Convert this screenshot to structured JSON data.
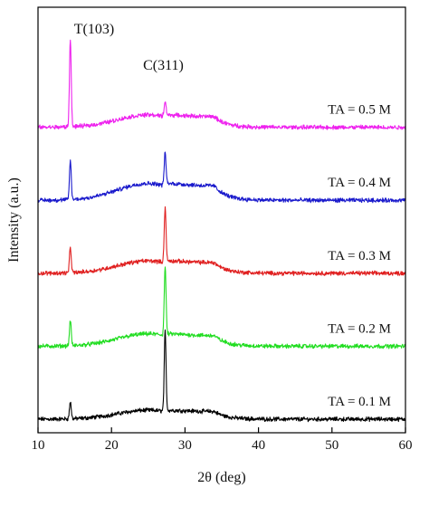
{
  "chart_data": {
    "type": "line",
    "title": "",
    "xlabel": "2θ (deg)",
    "ylabel": "Intensity (a.u.)",
    "xlim": [
      10,
      60
    ],
    "xticks": [
      10,
      20,
      30,
      40,
      50,
      60
    ],
    "yticks_shown": false,
    "grid": false,
    "legend": "none",
    "annotations": [
      {
        "text": "T(103)",
        "x": 14.4
      },
      {
        "text": "C(311)",
        "x": 27.3
      }
    ],
    "series": [
      {
        "name": "TA = 0.1 M",
        "color": "#000000",
        "baseline": 0.0,
        "amorphous_hump": 0.16,
        "peaks": [
          {
            "x": 14.4,
            "height": 0.3
          },
          {
            "x": 27.3,
            "height": 1.4
          }
        ]
      },
      {
        "name": "TA = 0.2 M",
        "color": "#22dd22",
        "baseline": 1.3,
        "amorphous_hump": 0.22,
        "peaks": [
          {
            "x": 14.4,
            "height": 0.45
          },
          {
            "x": 27.3,
            "height": 1.2
          }
        ]
      },
      {
        "name": "TA = 0.3 M",
        "color": "#e02020",
        "baseline": 2.6,
        "amorphous_hump": 0.22,
        "peaks": [
          {
            "x": 14.4,
            "height": 0.45
          },
          {
            "x": 27.3,
            "height": 0.95
          }
        ]
      },
      {
        "name": "TA = 0.4 M",
        "color": "#1a1acc",
        "baseline": 3.9,
        "amorphous_hump": 0.3,
        "peaks": [
          {
            "x": 14.4,
            "height": 0.7
          },
          {
            "x": 27.3,
            "height": 0.55
          }
        ]
      },
      {
        "name": "TA = 0.5 M",
        "color": "#ee22ee",
        "baseline": 5.2,
        "amorphous_hump": 0.22,
        "peaks": [
          {
            "x": 14.4,
            "height": 1.55
          },
          {
            "x": 27.3,
            "height": 0.25
          }
        ]
      }
    ]
  }
}
